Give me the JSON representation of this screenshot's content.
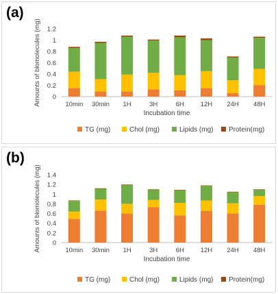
{
  "chart_data": [
    {
      "panel_label": "(a)",
      "type": "bar",
      "stacked": true,
      "categories": [
        "10min",
        "30min",
        "1H",
        "3H",
        "6H",
        "12H",
        "24H",
        "48H"
      ],
      "series": [
        {
          "name": "TG (mg)",
          "color": "#ed7d31",
          "values": [
            0.15,
            0.09,
            0.09,
            0.13,
            0.11,
            0.15,
            0.06,
            0.2
          ]
        },
        {
          "name": "Chol (mg)",
          "color": "#ffc000",
          "values": [
            0.29,
            0.22,
            0.3,
            0.29,
            0.27,
            0.3,
            0.23,
            0.29
          ]
        },
        {
          "name": "Lipids (mg)",
          "color": "#70ad47",
          "values": [
            0.42,
            0.64,
            0.67,
            0.57,
            0.67,
            0.55,
            0.4,
            0.55
          ]
        },
        {
          "name": "Protein(mg)",
          "color": "#9e480e",
          "values": [
            0.02,
            0.02,
            0.02,
            0.02,
            0.03,
            0.03,
            0.02,
            0.02
          ]
        }
      ],
      "xlabel": "Incubation time",
      "ylabel": "Amounts of biomolecules (mg)",
      "ylim": [
        0,
        1.2
      ],
      "yticks": [
        "0",
        "0.2",
        "0.4",
        "0.6",
        "0.8",
        "1",
        "1.2"
      ],
      "grid": false,
      "legend_position": "bottom"
    },
    {
      "panel_label": "(b)",
      "type": "bar",
      "stacked": true,
      "categories": [
        "10min",
        "30min",
        "1H",
        "3H",
        "6H",
        "12H",
        "24H",
        "48H"
      ],
      "series": [
        {
          "name": "TG (mg)",
          "color": "#ed7d31",
          "values": [
            0.49,
            0.66,
            0.6,
            0.73,
            0.56,
            0.65,
            0.6,
            0.78
          ]
        },
        {
          "name": "Chol (mg)",
          "color": "#ffc000",
          "values": [
            0.15,
            0.23,
            0.2,
            0.15,
            0.26,
            0.22,
            0.21,
            0.18
          ]
        },
        {
          "name": "Lipids (mg)",
          "color": "#70ad47",
          "values": [
            0.22,
            0.22,
            0.39,
            0.21,
            0.26,
            0.3,
            0.23,
            0.13
          ]
        },
        {
          "name": "Protein(mg)",
          "color": "#9e480e",
          "values": [
            0.01,
            0.01,
            0.01,
            0.01,
            0.01,
            0.01,
            0.01,
            0.01
          ]
        }
      ],
      "xlabel": "Incubation time",
      "ylabel": "Amounts of biomolecules (mg)",
      "ylim": [
        0,
        1.4
      ],
      "yticks": [
        "0",
        "0.2",
        "0.4",
        "0.6",
        "0.8",
        "1",
        "1.2",
        "1.4"
      ],
      "grid": false,
      "legend_position": "bottom"
    }
  ]
}
